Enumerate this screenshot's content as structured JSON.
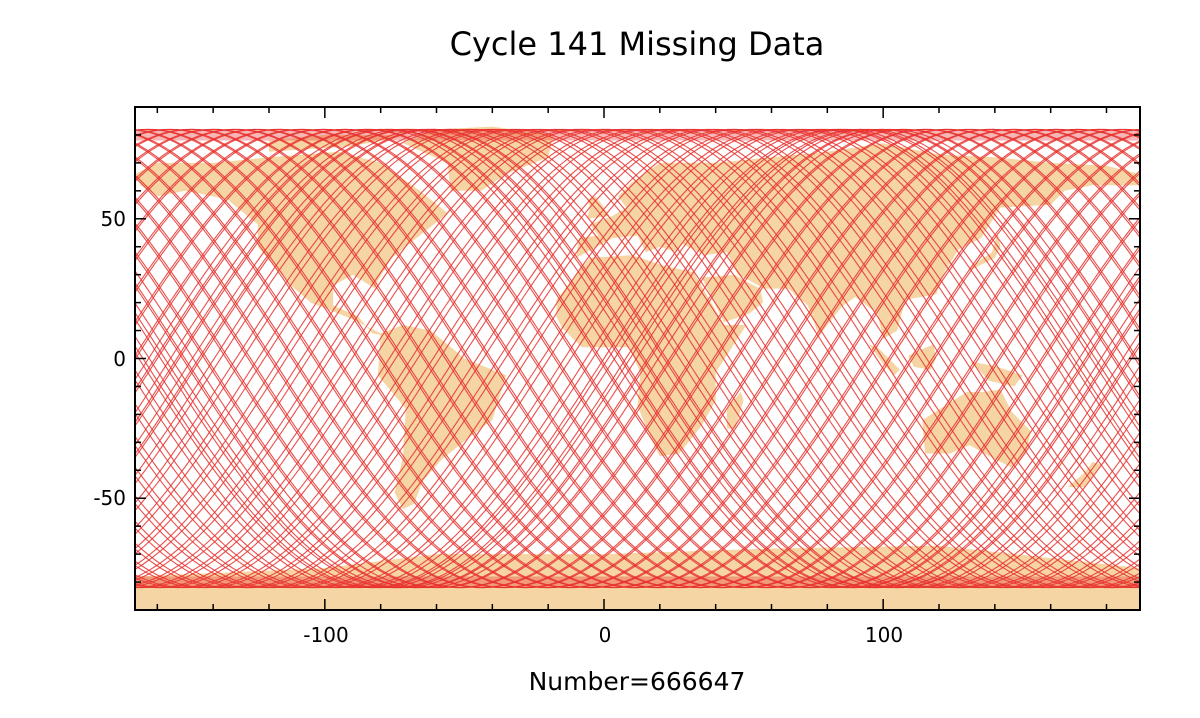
{
  "title": "Cycle 141 Missing Data",
  "footer_label": "Number=666647",
  "colors": {
    "track": "#e8302d",
    "land": "#f5d5a4",
    "axis": "#000000",
    "background": "#ffffff"
  },
  "chart_data": {
    "type": "scatter",
    "title": "Cycle 141 Missing Data",
    "xlabel": "",
    "ylabel": "",
    "xlim": [
      -168,
      192
    ],
    "ylim": [
      -90,
      90
    ],
    "x_ticks": [
      -100,
      0,
      100
    ],
    "x_tick_labels": [
      "-100",
      "0",
      "100"
    ],
    "y_ticks": [
      -50,
      0,
      50
    ],
    "y_tick_labels": [
      "-50",
      "0",
      "50"
    ],
    "grid": false,
    "annotation": "Number=666647",
    "series": [
      {
        "kind": "satellite ground tracks (missing data points)",
        "color": "#e8302d",
        "latitude_extent": [
          -82,
          82
        ],
        "longitude_extent": [
          -168,
          192
        ]
      }
    ],
    "background_layer": "world land mask",
    "background_color": "#f5d5a4"
  }
}
